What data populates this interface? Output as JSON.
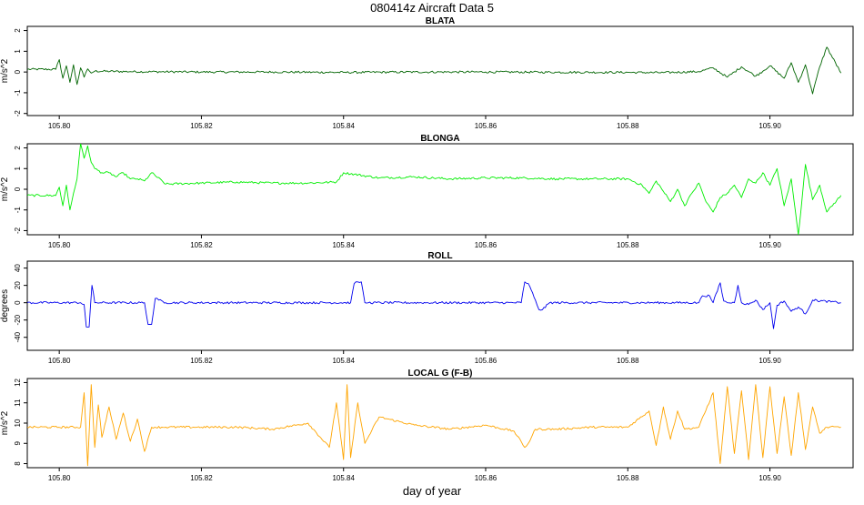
{
  "title": "080414z   Aircraft Data 5",
  "xlabel": "day of year",
  "chart_data": [
    {
      "type": "line",
      "title": "BLATA",
      "ylabel": "m/s^2",
      "color": "#006400",
      "xlim": [
        105.7955,
        105.9117
      ],
      "ylim": [
        -2.1,
        2.2
      ],
      "xticks": [
        105.8,
        105.82,
        105.84,
        105.86,
        105.88,
        105.9
      ],
      "xtick_labels": [
        "105.80",
        "105.82",
        "105.84",
        "105.86",
        "105.88",
        "105.90"
      ],
      "yticks": [
        -2,
        -1,
        0,
        1,
        2
      ],
      "ytick_labels": [
        "-2",
        "-1",
        "0",
        "1",
        "2"
      ],
      "series": [
        {
          "x": [
            105.7955,
            105.7995,
            105.8,
            105.8005,
            105.801,
            105.8015,
            105.802,
            105.8025,
            105.803,
            105.8035,
            105.804,
            105.8045,
            105.805,
            105.81,
            105.82,
            105.83,
            105.84,
            105.85,
            105.86,
            105.87,
            105.88,
            105.885,
            105.89,
            105.892,
            105.894,
            105.896,
            105.898,
            105.9,
            105.902,
            105.903,
            105.904,
            105.905,
            105.906,
            105.907,
            105.908,
            105.91
          ],
          "y": [
            0.13,
            0.13,
            0.6,
            -0.3,
            0.3,
            -0.5,
            0.35,
            -0.6,
            0.2,
            -0.25,
            0.15,
            -0.05,
            0.04,
            0.02,
            0.0,
            0.0,
            -0.02,
            0.0,
            0.0,
            -0.01,
            -0.02,
            -0.03,
            0.02,
            0.2,
            -0.25,
            0.25,
            -0.2,
            0.3,
            -0.3,
            0.45,
            -0.5,
            0.35,
            -1.05,
            0.25,
            1.2,
            -0.05
          ]
        }
      ]
    },
    {
      "type": "line",
      "title": "BLONGA",
      "ylabel": "m/s^2",
      "color": "#00ee00",
      "xlim": [
        105.7955,
        105.9117
      ],
      "ylim": [
        -2.2,
        2.2
      ],
      "xticks": [
        105.8,
        105.82,
        105.84,
        105.86,
        105.88,
        105.9
      ],
      "xtick_labels": [
        "105.80",
        "105.82",
        "105.84",
        "105.86",
        "105.88",
        "105.90"
      ],
      "yticks": [
        -2,
        -1,
        0,
        1,
        2
      ],
      "ytick_labels": [
        "-2",
        "-1",
        "0",
        "1",
        "2"
      ],
      "series": [
        {
          "x": [
            105.7955,
            105.7995,
            105.8,
            105.8005,
            105.801,
            105.8015,
            105.802,
            105.8025,
            105.803,
            105.8035,
            105.804,
            105.8045,
            105.805,
            105.806,
            105.807,
            105.808,
            105.809,
            105.81,
            105.811,
            105.812,
            105.813,
            105.815,
            105.82,
            105.825,
            105.83,
            105.835,
            105.839,
            105.84,
            105.845,
            105.85,
            105.855,
            105.86,
            105.865,
            105.87,
            105.875,
            105.88,
            105.882,
            105.883,
            105.884,
            105.885,
            105.886,
            105.887,
            105.888,
            105.889,
            105.89,
            105.891,
            105.892,
            105.893,
            105.894,
            105.895,
            105.896,
            105.897,
            105.898,
            105.899,
            105.9,
            105.901,
            105.902,
            105.903,
            105.904,
            105.905,
            105.906,
            105.907,
            105.908,
            105.91
          ],
          "y": [
            -0.3,
            -0.3,
            0.1,
            -0.8,
            0.2,
            -1.0,
            -0.2,
            0.5,
            2.2,
            1.5,
            2.1,
            1.3,
            1.0,
            0.8,
            0.8,
            0.6,
            0.8,
            0.5,
            0.5,
            0.4,
            0.8,
            0.25,
            0.3,
            0.35,
            0.3,
            0.3,
            0.35,
            0.8,
            0.55,
            0.6,
            0.5,
            0.55,
            0.55,
            0.5,
            0.5,
            0.5,
            0.2,
            -0.2,
            0.4,
            -0.1,
            -0.6,
            0.0,
            -0.8,
            -0.2,
            0.3,
            -0.6,
            -1.1,
            -0.4,
            -0.2,
            0.2,
            -0.4,
            0.5,
            0.3,
            0.8,
            0.2,
            1.0,
            -0.8,
            0.5,
            -2.2,
            1.2,
            -0.5,
            0.2,
            -1.1,
            -0.3
          ]
        }
      ]
    },
    {
      "type": "line",
      "title": "ROLL",
      "ylabel": "degrees",
      "color": "#0000ee",
      "xlim": [
        105.7955,
        105.9117
      ],
      "ylim": [
        -55,
        48
      ],
      "xticks": [
        105.8,
        105.82,
        105.84,
        105.86,
        105.88,
        105.9
      ],
      "xtick_labels": [
        "105.80",
        "105.82",
        "105.84",
        "105.86",
        "105.88",
        "105.90"
      ],
      "yticks": [
        -40,
        -20,
        0,
        20,
        40
      ],
      "ytick_labels": [
        "-40",
        "-20",
        "0",
        "20",
        "40"
      ],
      "series": [
        {
          "x": [
            105.7955,
            105.803,
            105.8035,
            105.8038,
            105.8042,
            105.8046,
            105.805,
            105.812,
            105.8125,
            105.813,
            105.8135,
            105.814,
            105.815,
            105.841,
            105.8415,
            105.842,
            105.8425,
            105.843,
            105.8435,
            105.865,
            105.8655,
            105.866,
            105.867,
            105.8675,
            105.868,
            105.869,
            105.89,
            105.8905,
            105.8915,
            105.892,
            105.893,
            105.8935,
            105.894,
            105.895,
            105.8955,
            105.896,
            105.897,
            105.898,
            105.899,
            105.9,
            105.9005,
            105.901,
            105.902,
            105.903,
            105.904,
            105.905,
            105.906,
            105.91
          ],
          "y": [
            0,
            0,
            -2,
            -28,
            -28,
            20,
            0,
            0,
            -25,
            -25,
            5,
            3,
            0,
            0,
            22,
            24,
            24,
            0,
            0,
            0,
            24,
            22,
            3,
            -8,
            -8,
            0,
            0,
            8,
            8,
            0,
            23,
            2,
            0,
            0,
            20,
            0,
            -2,
            3,
            -8,
            0,
            -30,
            -3,
            2,
            -10,
            -5,
            -13,
            3,
            0
          ]
        }
      ]
    },
    {
      "type": "line",
      "title": "LOCAL G (F-B)",
      "ylabel": "m/s^2",
      "color": "#ffa500",
      "xlim": [
        105.7955,
        105.9117
      ],
      "ylim": [
        7.8,
        12.2
      ],
      "xticks": [
        105.8,
        105.82,
        105.84,
        105.86,
        105.88,
        105.9
      ],
      "xtick_labels": [
        "105.80",
        "105.82",
        "105.84",
        "105.86",
        "105.88",
        "105.90"
      ],
      "yticks": [
        8,
        9,
        10,
        11,
        12
      ],
      "ytick_labels": [
        "8",
        "9",
        "10",
        "11",
        "12"
      ],
      "series": [
        {
          "x": [
            105.7955,
            105.803,
            105.8035,
            105.804,
            105.8045,
            105.805,
            105.8055,
            105.806,
            105.807,
            105.808,
            105.809,
            105.81,
            105.811,
            105.812,
            105.813,
            105.815,
            105.82,
            105.825,
            105.83,
            105.835,
            105.838,
            105.839,
            105.84,
            105.8405,
            105.841,
            105.842,
            105.843,
            105.845,
            105.85,
            105.855,
            105.86,
            105.864,
            105.8655,
            105.866,
            105.867,
            105.87,
            105.875,
            105.88,
            105.883,
            105.884,
            105.885,
            105.886,
            105.887,
            105.888,
            105.89,
            105.892,
            105.893,
            105.894,
            105.895,
            105.896,
            105.897,
            105.898,
            105.899,
            105.9,
            105.901,
            105.902,
            105.903,
            105.904,
            105.905,
            105.906,
            105.907,
            105.908,
            105.91
          ],
          "y": [
            9.8,
            9.8,
            11.5,
            7.9,
            11.9,
            8.8,
            10.9,
            9.3,
            10.8,
            9.2,
            10.5,
            9.1,
            10.2,
            8.6,
            9.8,
            9.8,
            9.8,
            9.8,
            9.7,
            10.0,
            8.8,
            11.0,
            8.2,
            11.9,
            8.3,
            11.0,
            9.0,
            10.3,
            9.9,
            9.7,
            9.9,
            9.6,
            8.8,
            9.0,
            9.7,
            9.7,
            9.8,
            9.8,
            10.6,
            8.9,
            10.8,
            9.2,
            10.6,
            9.7,
            9.8,
            11.5,
            8.0,
            11.8,
            8.5,
            11.6,
            8.2,
            11.9,
            8.3,
            11.8,
            8.5,
            11.3,
            8.4,
            11.5,
            8.7,
            10.8,
            9.5,
            9.8,
            9.8
          ]
        }
      ]
    }
  ]
}
